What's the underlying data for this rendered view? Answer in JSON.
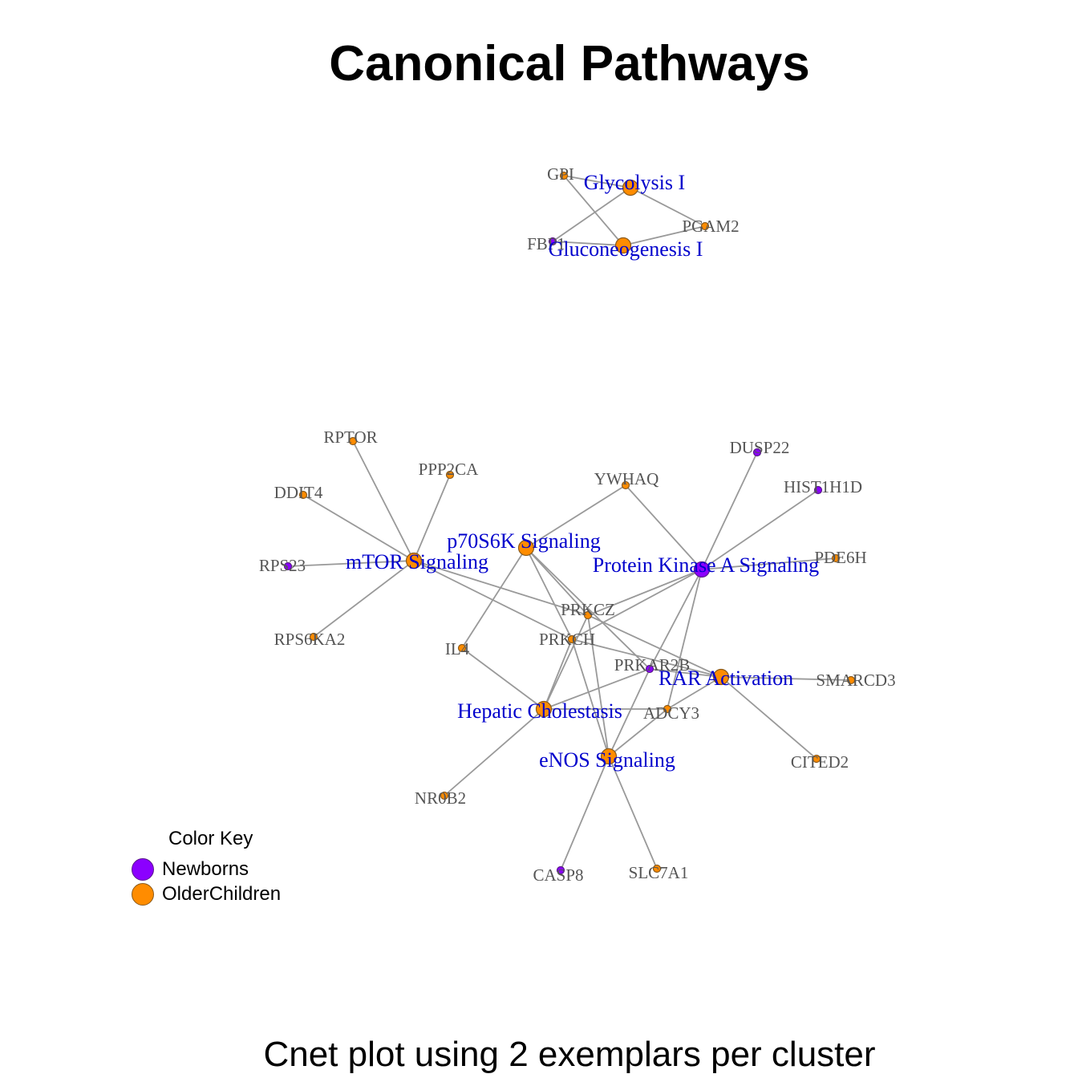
{
  "title": "Canonical Pathways",
  "caption": "Cnet plot using 2 exemplars per cluster",
  "legend": {
    "title": "Color Key",
    "items": [
      {
        "label": "Newborns",
        "color": "#8B00FF",
        "border": "#5a1a8a"
      },
      {
        "label": "OlderChildren",
        "color": "#FF8C00",
        "border": "#8a5a1a"
      }
    ]
  },
  "colors": {
    "edge": "#999999",
    "pathway_text": "#0000CC",
    "gene_text": "#555555"
  },
  "pathways": [
    {
      "id": "glyc",
      "label": "Glycolysis I",
      "group": "OlderChildren"
    },
    {
      "id": "gluc",
      "label": "Gluconeogenesis I",
      "group": "OlderChildren"
    },
    {
      "id": "mtor",
      "label": "mTOR Signaling",
      "group": "OlderChildren"
    },
    {
      "id": "p70",
      "label": "p70S6K Signaling",
      "group": "OlderChildren"
    },
    {
      "id": "pka",
      "label": "Protein Kinase A Signaling",
      "group": "Newborns"
    },
    {
      "id": "rar",
      "label": "RAR Activation",
      "group": "OlderChildren"
    },
    {
      "id": "hep",
      "label": "Hepatic Cholestasis",
      "group": "OlderChildren"
    },
    {
      "id": "enos",
      "label": "eNOS Signaling",
      "group": "OlderChildren"
    }
  ],
  "genes": [
    {
      "id": "GPI",
      "label": "GPI",
      "group": "OlderChildren"
    },
    {
      "id": "PGAM2",
      "label": "PGAM2",
      "group": "OlderChildren"
    },
    {
      "id": "FBP1",
      "label": "FBP1",
      "group": "Newborns"
    },
    {
      "id": "RPTOR",
      "label": "RPTOR",
      "group": "OlderChildren"
    },
    {
      "id": "PPP2CA",
      "label": "PPP2CA",
      "group": "OlderChildren"
    },
    {
      "id": "DDIT4",
      "label": "DDIT4",
      "group": "OlderChildren"
    },
    {
      "id": "RPS23",
      "label": "RPS23",
      "group": "Newborns"
    },
    {
      "id": "RPS6KA2",
      "label": "RPS6KA2",
      "group": "OlderChildren"
    },
    {
      "id": "YWHAQ",
      "label": "YWHAQ",
      "group": "OlderChildren"
    },
    {
      "id": "DUSP22",
      "label": "DUSP22",
      "group": "Newborns"
    },
    {
      "id": "HIST1H1D",
      "label": "HIST1H1D",
      "group": "Newborns"
    },
    {
      "id": "PDE6H",
      "label": "PDE6H",
      "group": "OlderChildren"
    },
    {
      "id": "PRKCZ",
      "label": "PRKCZ",
      "group": "OlderChildren"
    },
    {
      "id": "PRKCH",
      "label": "PRKCH",
      "group": "OlderChildren"
    },
    {
      "id": "IL4",
      "label": "IL4",
      "group": "OlderChildren"
    },
    {
      "id": "PRKAR2B",
      "label": "PRKAR2B",
      "group": "Newborns"
    },
    {
      "id": "SMARCD3",
      "label": "SMARCD3",
      "group": "OlderChildren"
    },
    {
      "id": "ADCY3",
      "label": "ADCY3",
      "group": "OlderChildren"
    },
    {
      "id": "CITED2",
      "label": "CITED2",
      "group": "OlderChildren"
    },
    {
      "id": "NR0B2",
      "label": "NR0B2",
      "group": "OlderChildren"
    },
    {
      "id": "CASP8",
      "label": "CASP8",
      "group": "Newborns"
    },
    {
      "id": "SLC7A1",
      "label": "SLC7A1",
      "group": "OlderChildren"
    }
  ],
  "edges": [
    [
      "glyc",
      "GPI"
    ],
    [
      "glyc",
      "PGAM2"
    ],
    [
      "glyc",
      "FBP1"
    ],
    [
      "gluc",
      "GPI"
    ],
    [
      "gluc",
      "PGAM2"
    ],
    [
      "gluc",
      "FBP1"
    ],
    [
      "mtor",
      "RPTOR"
    ],
    [
      "mtor",
      "PPP2CA"
    ],
    [
      "mtor",
      "DDIT4"
    ],
    [
      "mtor",
      "RPS23"
    ],
    [
      "mtor",
      "RPS6KA2"
    ],
    [
      "mtor",
      "PRKCZ"
    ],
    [
      "mtor",
      "PRKCH"
    ],
    [
      "p70",
      "YWHAQ"
    ],
    [
      "p70",
      "IL4"
    ],
    [
      "p70",
      "PRKCZ"
    ],
    [
      "p70",
      "PRKCH"
    ],
    [
      "p70",
      "PRKAR2B"
    ],
    [
      "pka",
      "YWHAQ"
    ],
    [
      "pka",
      "DUSP22"
    ],
    [
      "pka",
      "HIST1H1D"
    ],
    [
      "pka",
      "PDE6H"
    ],
    [
      "pka",
      "PRKCZ"
    ],
    [
      "pka",
      "PRKCH"
    ],
    [
      "pka",
      "PRKAR2B"
    ],
    [
      "pka",
      "ADCY3"
    ],
    [
      "rar",
      "PRKCZ"
    ],
    [
      "rar",
      "PRKCH"
    ],
    [
      "rar",
      "SMARCD3"
    ],
    [
      "rar",
      "CITED2"
    ],
    [
      "rar",
      "ADCY3"
    ],
    [
      "rar",
      "PRKAR2B"
    ],
    [
      "hep",
      "IL4"
    ],
    [
      "hep",
      "NR0B2"
    ],
    [
      "hep",
      "PRKCZ"
    ],
    [
      "hep",
      "PRKCH"
    ],
    [
      "hep",
      "PRKAR2B"
    ],
    [
      "hep",
      "ADCY3"
    ],
    [
      "enos",
      "PRKCZ"
    ],
    [
      "enos",
      "PRKCH"
    ],
    [
      "enos",
      "PRKAR2B"
    ],
    [
      "enos",
      "ADCY3"
    ],
    [
      "enos",
      "CASP8"
    ],
    [
      "enos",
      "SLC7A1"
    ]
  ]
}
